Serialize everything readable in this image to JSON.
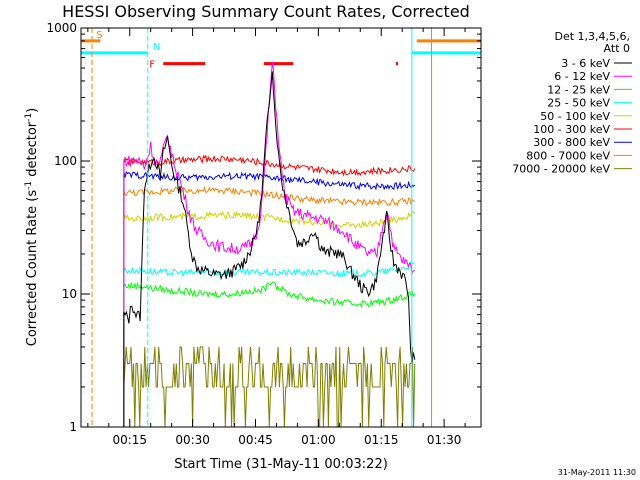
{
  "chart_data": {
    "type": "line",
    "title": "HESSI Observing Summary Count Rates, Corrected",
    "ylabel_main": "Corrected Count Rate (s",
    "ylabel_sup1": "-1",
    "ylabel_mid": " detector",
    "ylabel_sup2": "-1",
    "ylabel_end": ")",
    "xlabel": "Start Time (31-May-11 00:03:22)",
    "y_scale": "log",
    "ylim": [
      1,
      1000
    ],
    "xlim_minutes": [
      3.37,
      48.0
    ],
    "yticks": [
      {
        "value": 1,
        "label": "1"
      },
      {
        "value": 10,
        "label": "10"
      },
      {
        "value": 100,
        "label": "100"
      },
      {
        "value": 1000,
        "label": "1000"
      }
    ],
    "xticks": [
      {
        "value": 15,
        "label": "00:15"
      },
      {
        "value": 30,
        "label": "00:30"
      },
      {
        "value": 45,
        "label": "00:45"
      },
      {
        "value": 60,
        "label": "01:00"
      },
      {
        "value": 75,
        "label": "01:15"
      },
      {
        "value": 90,
        "label": "01:30"
      }
    ],
    "legend_title": [
      "Det 1,3,4,5,6,",
      "Att 0"
    ],
    "series": [
      {
        "name": "3 - 6 keV",
        "color": "#000000",
        "x": [
          13.6,
          14.8,
          15.5,
          16.5,
          17.5,
          18.5,
          19.3,
          20.5,
          21.5,
          22.3,
          23.0,
          24.0,
          25.0,
          26.0,
          27.0,
          28.0,
          29.0,
          30.0,
          31.0,
          32.5,
          35.0,
          38.0,
          40.0,
          42.0,
          44.0,
          45.5,
          46.5,
          47.5,
          48.3,
          49.0,
          49.5,
          50.5,
          51.5,
          52.5,
          53.5,
          55.0,
          57.0,
          58.0,
          59.0,
          60.5,
          62.0,
          63.5,
          65.0,
          66.5,
          67.5,
          69.0,
          70.5,
          72.0,
          73.5,
          74.5,
          75.5,
          76.3,
          77.0,
          78.0,
          79.5,
          80.5,
          81.5,
          82.0,
          83.0
        ],
        "y": [
          7.0,
          6.5,
          8.5,
          7.0,
          6.8,
          65,
          80,
          110,
          95,
          75,
          115,
          150,
          95,
          70,
          60,
          45,
          28,
          19,
          16,
          15,
          14,
          14,
          15,
          17,
          22,
          32,
          55,
          150,
          280,
          520,
          260,
          110,
          65,
          48,
          36,
          24,
          25,
          28,
          30,
          23,
          20,
          21,
          20,
          18,
          15,
          13,
          11,
          10.5,
          12,
          17,
          28,
          38,
          26,
          17,
          15,
          13,
          10,
          3.5,
          3.2
        ]
      },
      {
        "name": "6 - 12 keV",
        "color": "#ff00ff",
        "x": [
          13.6,
          16.0,
          17.5,
          18.5,
          20.0,
          21.0,
          22.0,
          23.0,
          24.0,
          25.0,
          26.5,
          28.0,
          29.5,
          31.0,
          33.0,
          36.0,
          39.0,
          42.0,
          44.0,
          45.5,
          46.5,
          47.5,
          48.3,
          49.0,
          49.8,
          50.8,
          52.0,
          54.0,
          56.0,
          58.0,
          60.0,
          62.0,
          64.0,
          66.0,
          68.0,
          70.0,
          72.0,
          74.0,
          75.5,
          76.5,
          78.0,
          80.0,
          82.0,
          83.0
        ],
        "y": [
          100,
          100,
          100,
          90,
          130,
          100,
          90,
          120,
          160,
          110,
          80,
          55,
          38,
          30,
          26,
          23,
          22,
          22,
          24,
          30,
          48,
          120,
          280,
          550,
          280,
          110,
          55,
          42,
          40,
          38,
          37,
          35,
          32,
          30,
          25,
          22,
          20,
          20,
          35,
          42,
          22,
          18,
          16,
          15
        ]
      },
      {
        "name": "12 - 25 keV",
        "color": "#00ff00",
        "x": [
          13.6,
          18.0,
          20.0,
          22.0,
          25.0,
          28.0,
          31.0,
          34.0,
          37.0,
          40.0,
          43.0,
          46.0,
          48.0,
          49.0,
          50.0,
          53.0,
          56.0,
          60.0,
          64.0,
          68.0,
          72.0,
          76.0,
          80.0,
          83.0
        ],
        "y": [
          11.5,
          11.5,
          11,
          11,
          10.5,
          10.5,
          10,
          10,
          10,
          10,
          10.5,
          10.5,
          11.5,
          13,
          11.5,
          10,
          9.5,
          9.0,
          8.7,
          8.5,
          8.5,
          8.8,
          9.5,
          10
        ]
      },
      {
        "name": "25 - 50 keV",
        "color": "#00ffff",
        "x": [
          13.6,
          18.0,
          22.0,
          26.0,
          30.0,
          34.0,
          38.0,
          42.0,
          46.0,
          49.0,
          52.0,
          56.0,
          60.0,
          64.0,
          68.0,
          72.0,
          76.0,
          80.0,
          83.0
        ],
        "y": [
          15,
          15,
          14.5,
          14.5,
          14.5,
          14.5,
          14.5,
          14.5,
          14.5,
          14.5,
          14.5,
          14.5,
          14.5,
          14.3,
          14.3,
          14.3,
          14.8,
          15.5,
          17
        ]
      },
      {
        "name": "50 - 100 keV",
        "color": "#d2d200",
        "x": [
          13.6,
          18.0,
          22.0,
          26.0,
          30.0,
          34.0,
          38.0,
          42.0,
          46.0,
          50.0,
          54.0,
          58.0,
          62.0,
          66.0,
          70.0,
          74.0,
          78.0,
          83.0
        ],
        "y": [
          37,
          37,
          38,
          38,
          38,
          39,
          39,
          39,
          38,
          37,
          36,
          35,
          34,
          33,
          33,
          34,
          36,
          40
        ]
      },
      {
        "name": "100 - 300 keV",
        "color": "#ff0000",
        "x": [
          13.6,
          18.0,
          22.0,
          26.0,
          30.0,
          34.0,
          38.0,
          42.0,
          46.0,
          50.0,
          54.0,
          58.0,
          62.0,
          66.0,
          70.0,
          74.0,
          78.0,
          83.0
        ],
        "y": [
          100,
          98,
          98,
          100,
          102,
          104,
          104,
          102,
          98,
          94,
          90,
          87,
          85,
          83,
          83,
          84,
          86,
          88
        ]
      },
      {
        "name": "300 - 800 keV",
        "color": "#0000ff",
        "x": [
          13.6,
          18.0,
          22.0,
          26.0,
          30.0,
          34.0,
          38.0,
          42.0,
          46.0,
          50.0,
          54.0,
          58.0,
          62.0,
          66.0,
          70.0,
          74.0,
          78.0,
          83.0
        ],
        "y": [
          79,
          78,
          76,
          75,
          75,
          76,
          77,
          77,
          76,
          74,
          72,
          70,
          68,
          66,
          65,
          65,
          65,
          66
        ]
      },
      {
        "name": "800 - 7000 keV",
        "color": "#ff7f00",
        "x": [
          13.6,
          18.0,
          22.0,
          26.0,
          30.0,
          34.0,
          38.0,
          42.0,
          46.0,
          50.0,
          54.0,
          58.0,
          62.0,
          66.0,
          70.0,
          74.0,
          78.0,
          83.0
        ],
        "y": [
          58,
          58,
          59,
          60,
          60,
          60,
          60,
          59,
          57,
          55,
          53,
          51,
          50,
          49,
          49,
          49,
          49,
          50
        ]
      },
      {
        "name": "7000 - 20000 keV",
        "color": "#7f7f00",
        "x": [
          13.6,
          15.0,
          16.5,
          18.0,
          19.5,
          21.0,
          22.5,
          24.0,
          25.5,
          27.0,
          28.5,
          30.0,
          31.5,
          33.0,
          34.5,
          36.0,
          37.5,
          39.0,
          40.5,
          42.0,
          43.5,
          45.0,
          46.5,
          48.0,
          49.5,
          51.0,
          52.5,
          54.0,
          55.5,
          57.0,
          58.5,
          60.0,
          61.5,
          63.0,
          64.5,
          66.0,
          67.5,
          69.0,
          70.5,
          72.0,
          73.5,
          75.0,
          76.5,
          78.0,
          79.5,
          81.0,
          83.0
        ],
        "y": [
          2,
          2,
          2,
          2,
          2,
          3,
          2,
          2,
          3,
          3,
          2,
          3,
          2,
          3,
          3,
          2,
          3,
          3,
          3,
          3,
          2,
          4,
          3,
          3,
          3,
          2,
          3,
          3,
          3,
          3,
          2,
          3,
          3,
          2,
          3,
          3,
          3,
          3,
          2,
          3,
          3,
          3,
          2,
          3,
          3,
          3,
          3
        ]
      }
    ],
    "flags": [
      {
        "label": "S",
        "color": "#ff7f00",
        "intervals": [
          [
            3.37,
            8.0
          ],
          [
            83.5,
            98.8
          ]
        ],
        "level": 800
      },
      {
        "label": "N",
        "color": "#00ffff",
        "intervals": [
          [
            3.37,
            19.3
          ],
          [
            82.3,
            98.8
          ]
        ],
        "level": 650
      },
      {
        "label": "F",
        "color": "#ff0000",
        "intervals": [
          [
            23.0,
            33.0
          ],
          [
            47.0,
            54.0
          ],
          [
            78.5,
            79.0
          ]
        ],
        "level": 540
      }
    ],
    "vlines": [
      {
        "x": 6.0,
        "color": "#ff7f00",
        "style": "dashed"
      },
      {
        "x": 19.3,
        "color": "#00ffff",
        "style": "dashed"
      },
      {
        "x": 82.3,
        "color": "#00ffff",
        "style": "solid"
      },
      {
        "x": 87.0,
        "color": "#ff7f00",
        "style": "solid"
      },
      {
        "x": 98.8,
        "color": "#ff7f00",
        "style": "dashed"
      }
    ]
  },
  "footer_stamp": "31-May-2011 11:30"
}
